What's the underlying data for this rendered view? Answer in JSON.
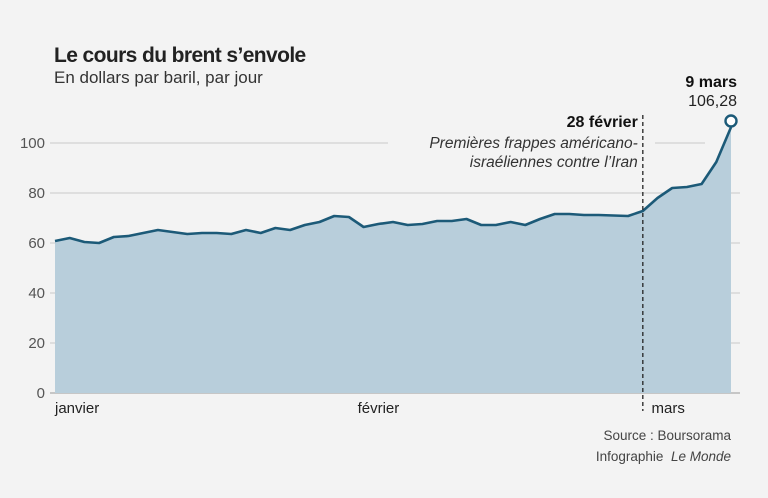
{
  "chart_data": {
    "type": "area",
    "title": "Le cours du brent s’envole",
    "subtitle": "En dollars par baril, par jour",
    "xlabel": "",
    "ylabel": "",
    "ylim": [
      0,
      110
    ],
    "yticks": [
      0,
      20,
      40,
      60,
      80,
      100
    ],
    "grid": true,
    "x_tick_labels": [
      {
        "label": "janvier",
        "date": "2026-01-02"
      },
      {
        "label": "février",
        "date": "2026-02-02"
      },
      {
        "label": "mars",
        "date": "2026-03-02"
      }
    ],
    "x": [
      "2026-01-02",
      "2026-01-05",
      "2026-01-06",
      "2026-01-07",
      "2026-01-08",
      "2026-01-09",
      "2026-01-12",
      "2026-01-13",
      "2026-01-14",
      "2026-01-15",
      "2026-01-16",
      "2026-01-19",
      "2026-01-20",
      "2026-01-21",
      "2026-01-22",
      "2026-01-23",
      "2026-01-26",
      "2026-01-27",
      "2026-01-28",
      "2026-01-29",
      "2026-01-30",
      "2026-02-02",
      "2026-02-03",
      "2026-02-04",
      "2026-02-05",
      "2026-02-06",
      "2026-02-09",
      "2026-02-10",
      "2026-02-11",
      "2026-02-12",
      "2026-02-13",
      "2026-02-16",
      "2026-02-17",
      "2026-02-18",
      "2026-02-19",
      "2026-02-20",
      "2026-02-23",
      "2026-02-24",
      "2026-02-25",
      "2026-02-26",
      "2026-02-27",
      "2026-03-02",
      "2026-03-03",
      "2026-03-04",
      "2026-03-05",
      "2026-03-06",
      "2026-03-09"
    ],
    "values": [
      60.8,
      62,
      60.4,
      60,
      62.4,
      62.8,
      64,
      65.2,
      64.4,
      63.6,
      64,
      64,
      63.6,
      65.2,
      64,
      66,
      65.2,
      67.2,
      68.4,
      70.8,
      70.4,
      66.4,
      67.6,
      68.4,
      67.2,
      67.6,
      68.8,
      68.8,
      69.6,
      67.2,
      67.2,
      68.4,
      67.2,
      69.6,
      71.6,
      71.6,
      71.2,
      71.2,
      71,
      70.8,
      72.8,
      78,
      82,
      82.4,
      83.6,
      92.4,
      106.28
    ],
    "annotations": [
      {
        "date": "2026-02-27",
        "title": "28 février",
        "text_line1": "Premières frappes américano-",
        "text_line2": "israéliennes contre l’Iran"
      },
      {
        "date": "2026-03-09",
        "title": "9 mars",
        "value_label": "106,28"
      }
    ],
    "colors": {
      "line": "#1c5a78",
      "fill": "#b8cedb",
      "background": "#f3f3f3"
    }
  },
  "source": {
    "line1": "Source : Boursorama",
    "credit_prefix": "Infographie",
    "credit_name": "Le Monde"
  }
}
